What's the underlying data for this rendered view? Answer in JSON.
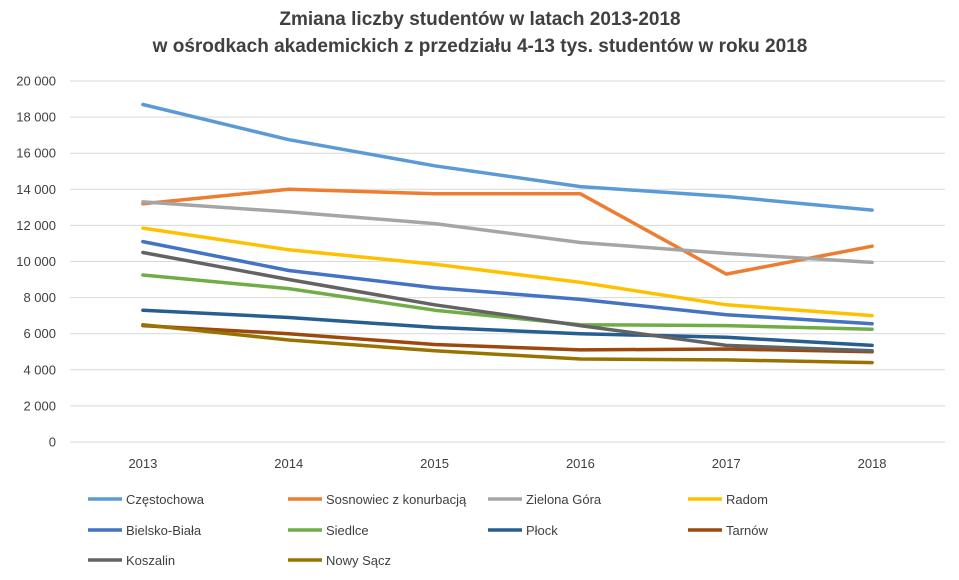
{
  "chart_data": {
    "type": "line",
    "title": [
      "Zmiana liczby studentów w latach 2013-2018",
      "w ośrodkach akademickich z przedziału 4-13 tys. studentów w roku 2018"
    ],
    "xlabel": "",
    "ylabel": "",
    "categories": [
      "2013",
      "2014",
      "2015",
      "2016",
      "2017",
      "2018"
    ],
    "ylim": [
      0,
      20000
    ],
    "yticks": [
      0,
      2000,
      4000,
      6000,
      8000,
      10000,
      12000,
      14000,
      16000,
      18000,
      20000
    ],
    "ytick_labels": [
      "0",
      "2 000",
      "4 000",
      "6 000",
      "8 000",
      "10 000",
      "12 000",
      "14 000",
      "16 000",
      "18 000",
      "20 000"
    ],
    "grid": true,
    "legend_position": "bottom",
    "series": [
      {
        "name": "Częstochowa",
        "color": "#5b9bd5",
        "values": [
          18700,
          16750,
          15300,
          14150,
          13600,
          12850
        ]
      },
      {
        "name": "Sosnowiec z konurbacją",
        "color": "#ed7d31",
        "values": [
          13200,
          14000,
          13750,
          13750,
          9300,
          10850
        ]
      },
      {
        "name": "Zielona Góra",
        "color": "#a5a5a5",
        "values": [
          13300,
          12750,
          12100,
          11050,
          10450,
          9950
        ]
      },
      {
        "name": "Radom",
        "color": "#ffc000",
        "values": [
          11850,
          10650,
          9850,
          8850,
          7600,
          7000
        ]
      },
      {
        "name": "Bielsko-Biała",
        "color": "#4472c4",
        "values": [
          11100,
          9500,
          8550,
          7900,
          7050,
          6550
        ]
      },
      {
        "name": "Siedlce",
        "color": "#70ad47",
        "values": [
          9250,
          8500,
          7300,
          6500,
          6450,
          6250
        ]
      },
      {
        "name": "Płock",
        "color": "#255e91",
        "values": [
          7300,
          6900,
          6350,
          6000,
          5800,
          5350
        ]
      },
      {
        "name": "Tarnów",
        "color": "#9e480e",
        "values": [
          6450,
          6000,
          5400,
          5100,
          5150,
          5000
        ]
      },
      {
        "name": "Koszalin",
        "color": "#636363",
        "values": [
          10500,
          9000,
          7600,
          6450,
          5350,
          5050
        ]
      },
      {
        "name": "Nowy Sącz",
        "color": "#997300",
        "values": [
          6500,
          5650,
          5050,
          4600,
          4550,
          4400
        ]
      }
    ]
  }
}
